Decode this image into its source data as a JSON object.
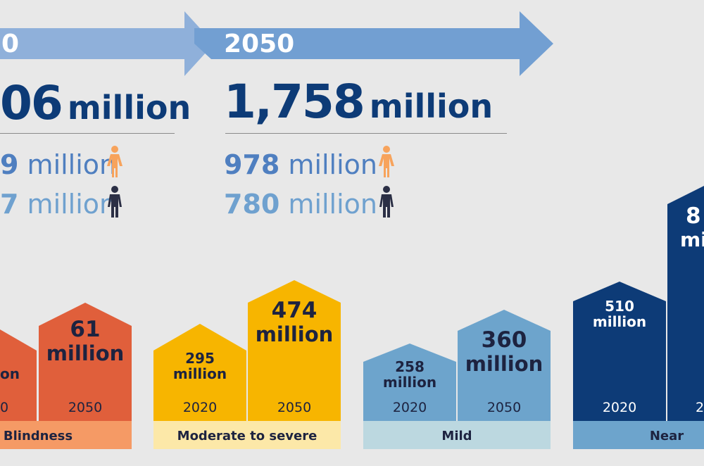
{
  "timeline": {
    "left_year_partial": "0",
    "right_year": "2050"
  },
  "totals": {
    "left": {
      "number_partial": "06",
      "unit": "million"
    },
    "right": {
      "number": "1,758",
      "unit": "million"
    }
  },
  "sex_breakdown": {
    "left": {
      "female": {
        "number_partial": "9",
        "unit": "million"
      },
      "male": {
        "number_partial": "7",
        "unit": "million"
      }
    },
    "right": {
      "female": {
        "number": "978",
        "unit": "million"
      },
      "male": {
        "number": "780",
        "unit": "million"
      }
    }
  },
  "categories": [
    {
      "label": "Blindness",
      "color_dark": "#e05f3b",
      "color_light": "#f59a65",
      "bars": [
        {
          "year": "0",
          "value_partial": "on"
        },
        {
          "year": "2050",
          "value": "61",
          "unit": "million"
        }
      ]
    },
    {
      "label": "Moderate to severe",
      "color_dark": "#f7b500",
      "color_light": "#fce8a8",
      "bars": [
        {
          "year": "2020",
          "value": "295",
          "unit": "million"
        },
        {
          "year": "2050",
          "value": "474",
          "unit": "million"
        }
      ]
    },
    {
      "label": "Mild",
      "color_dark": "#6da4cc",
      "color_light": "#bcd8e0",
      "bars": [
        {
          "year": "2020",
          "value": "258",
          "unit": "million"
        },
        {
          "year": "2050",
          "value": "360",
          "unit": "million"
        }
      ]
    },
    {
      "label": "Near",
      "color_dark": "#0d3b77",
      "color_light": "#6da4cc",
      "bars": [
        {
          "year": "2020",
          "value": "510",
          "unit": "million"
        },
        {
          "year": "2",
          "value_partial": "8",
          "unit_partial": "mi"
        }
      ]
    }
  ],
  "colors": {
    "navy": "#0d3b77",
    "arrow_left": "#8fb0da",
    "arrow_right": "#729fd2",
    "female_icon": "#f7a35c",
    "male_icon": "#2b2f45"
  }
}
